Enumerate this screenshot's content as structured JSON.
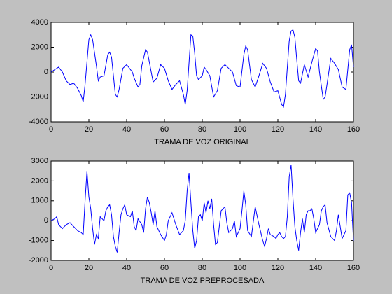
{
  "chart_data": [
    {
      "type": "line",
      "xlabel": "TRAMA DE VOZ ORIGINAL",
      "color": "#0000ff",
      "xlim": [
        0,
        160
      ],
      "ylim": [
        -4000,
        4000
      ],
      "xticks": [
        0,
        20,
        40,
        60,
        80,
        100,
        120,
        140,
        160
      ],
      "yticks": [
        -4000,
        -2000,
        0,
        2000,
        4000
      ],
      "x": [
        0,
        2,
        4,
        6,
        8,
        10,
        12,
        14,
        16,
        17,
        18,
        20,
        21,
        22,
        24,
        25,
        26,
        28,
        30,
        31,
        32,
        34,
        35,
        36,
        38,
        40,
        42,
        43,
        44,
        46,
        47,
        48,
        50,
        51,
        52,
        54,
        56,
        58,
        60,
        62,
        64,
        66,
        68,
        70,
        71,
        72,
        74,
        75,
        76,
        77,
        78,
        80,
        81,
        82,
        84,
        86,
        88,
        90,
        92,
        94,
        96,
        98,
        100,
        102,
        103,
        104,
        106,
        108,
        110,
        112,
        114,
        116,
        118,
        120,
        122,
        123,
        124,
        126,
        127,
        128,
        129,
        130,
        131,
        132,
        134,
        136,
        138,
        140,
        141,
        142,
        144,
        145,
        146,
        148,
        150,
        152,
        154,
        156,
        158,
        159,
        160
      ],
      "values": [
        0,
        200,
        400,
        0,
        -700,
        -1000,
        -900,
        -1300,
        -1900,
        -2400,
        -1000,
        2600,
        3000,
        2600,
        500,
        -700,
        -400,
        -300,
        1400,
        1600,
        1200,
        -1800,
        -2000,
        -1400,
        300,
        600,
        200,
        0,
        -500,
        -1200,
        -1000,
        500,
        1800,
        1600,
        800,
        -800,
        -500,
        600,
        300,
        -700,
        -1400,
        -1000,
        -700,
        -1800,
        -2600,
        -1500,
        3000,
        2900,
        1500,
        -300,
        -600,
        -300,
        400,
        200,
        -300,
        -2000,
        -1500,
        300,
        600,
        300,
        0,
        -1100,
        -1200,
        1400,
        2100,
        1800,
        -600,
        -1200,
        -300,
        700,
        300,
        -800,
        -1600,
        -1500,
        -2600,
        -2800,
        -1800,
        2500,
        3300,
        3400,
        2800,
        1000,
        -700,
        -900,
        600,
        -400,
        800,
        1900,
        1700,
        0,
        -2200,
        -2000,
        -1000,
        1100,
        700,
        200,
        -1200,
        -1400,
        1800,
        2200,
        400
      ]
    },
    {
      "type": "line",
      "xlabel": "TRAMA DE VOZ PREPROCESADA",
      "color": "#0000ff",
      "xlim": [
        0,
        160
      ],
      "ylim": [
        -2000,
        3000
      ],
      "xticks": [
        0,
        20,
        40,
        60,
        80,
        100,
        120,
        140,
        160
      ],
      "yticks": [
        -2000,
        -1000,
        0,
        1000,
        2000,
        3000
      ],
      "x": [
        0,
        2,
        3,
        4,
        6,
        8,
        10,
        12,
        14,
        16,
        17,
        18,
        19,
        20,
        21,
        22,
        23,
        24,
        25,
        26,
        28,
        29,
        30,
        31,
        32,
        33,
        34,
        35,
        36,
        37,
        38,
        39,
        40,
        42,
        43,
        44,
        45,
        46,
        48,
        49,
        50,
        51,
        52,
        53,
        54,
        55,
        56,
        58,
        60,
        61,
        62,
        64,
        66,
        68,
        70,
        71,
        72,
        73,
        74,
        75,
        76,
        77,
        78,
        79,
        80,
        81,
        82,
        83,
        84,
        85,
        86,
        87,
        88,
        90,
        92,
        93,
        94,
        96,
        97,
        98,
        100,
        101,
        102,
        103,
        104,
        106,
        108,
        110,
        112,
        113,
        114,
        115,
        116,
        118,
        119,
        120,
        121,
        122,
        123,
        124,
        125,
        126,
        127,
        128,
        129,
        130,
        131,
        132,
        133,
        134,
        135,
        136,
        137,
        138,
        139,
        140,
        142,
        143,
        144,
        145,
        146,
        148,
        150,
        151,
        152,
        154,
        155,
        156,
        157,
        158,
        159,
        160
      ],
      "values": [
        0,
        100,
        200,
        -200,
        -400,
        -200,
        -100,
        -300,
        -500,
        -600,
        -700,
        1000,
        2500,
        1200,
        600,
        -400,
        -1200,
        -700,
        -900,
        200,
        0,
        500,
        700,
        800,
        300,
        -800,
        -1300,
        -1600,
        -600,
        300,
        600,
        800,
        300,
        200,
        500,
        -300,
        -500,
        100,
        -200,
        -600,
        600,
        1200,
        900,
        400,
        -200,
        500,
        -300,
        -700,
        -1000,
        -700,
        0,
        400,
        -200,
        -700,
        -500,
        0,
        1500,
        2400,
        900,
        -500,
        -1400,
        -1000,
        200,
        300,
        0,
        900,
        400,
        1000,
        600,
        1100,
        -200,
        -1200,
        -1100,
        500,
        700,
        -100,
        -600,
        -400,
        0,
        -800,
        -400,
        500,
        1500,
        800,
        -500,
        -800,
        700,
        -200,
        -1000,
        -1300,
        -900,
        -400,
        -700,
        -800,
        -900,
        -700,
        -600,
        -800,
        -900,
        -800,
        200,
        2200,
        2800,
        1100,
        -300,
        -1000,
        -1500,
        -600,
        100,
        -600,
        300,
        500,
        500,
        600,
        100,
        -600,
        -200,
        500,
        700,
        800,
        -100,
        -800,
        -1000,
        -500,
        300,
        -900,
        -700,
        -500,
        1300,
        1400,
        900,
        -1000
      ]
    }
  ]
}
